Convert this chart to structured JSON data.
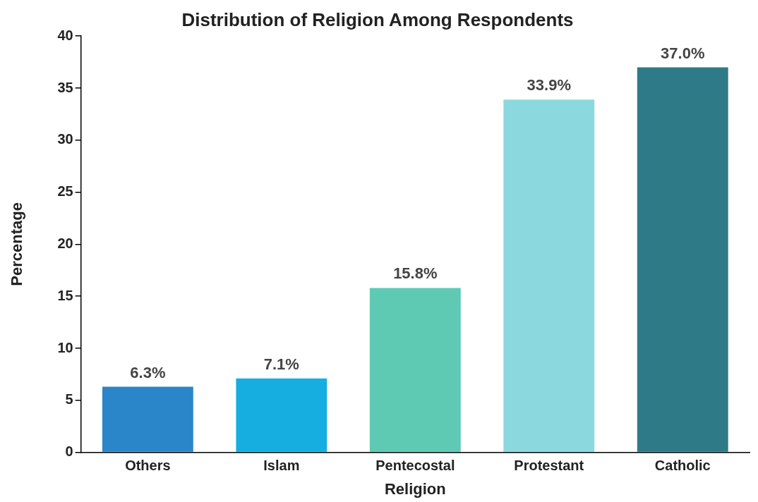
{
  "chart_data": {
    "type": "bar",
    "title": "Distribution of Religion Among Respondents",
    "xlabel": "Religion",
    "ylabel": "Percentage",
    "categories": [
      "Others",
      "Islam",
      "Pentecostal",
      "Protestant",
      "Catholic"
    ],
    "values": [
      6.3,
      7.1,
      15.8,
      33.9,
      37.0
    ],
    "colors": [
      "#2a86c8",
      "#16aee0",
      "#5ecab4",
      "#8cd8df",
      "#2e7a86"
    ],
    "value_labels": [
      "6.3%",
      "7.1%",
      "15.8%",
      "33.9%",
      "37.0%"
    ],
    "ylim": [
      0,
      40
    ],
    "yticks": [
      0,
      5,
      10,
      15,
      20,
      25,
      30,
      35,
      40
    ],
    "grid": false,
    "legend": false
  }
}
